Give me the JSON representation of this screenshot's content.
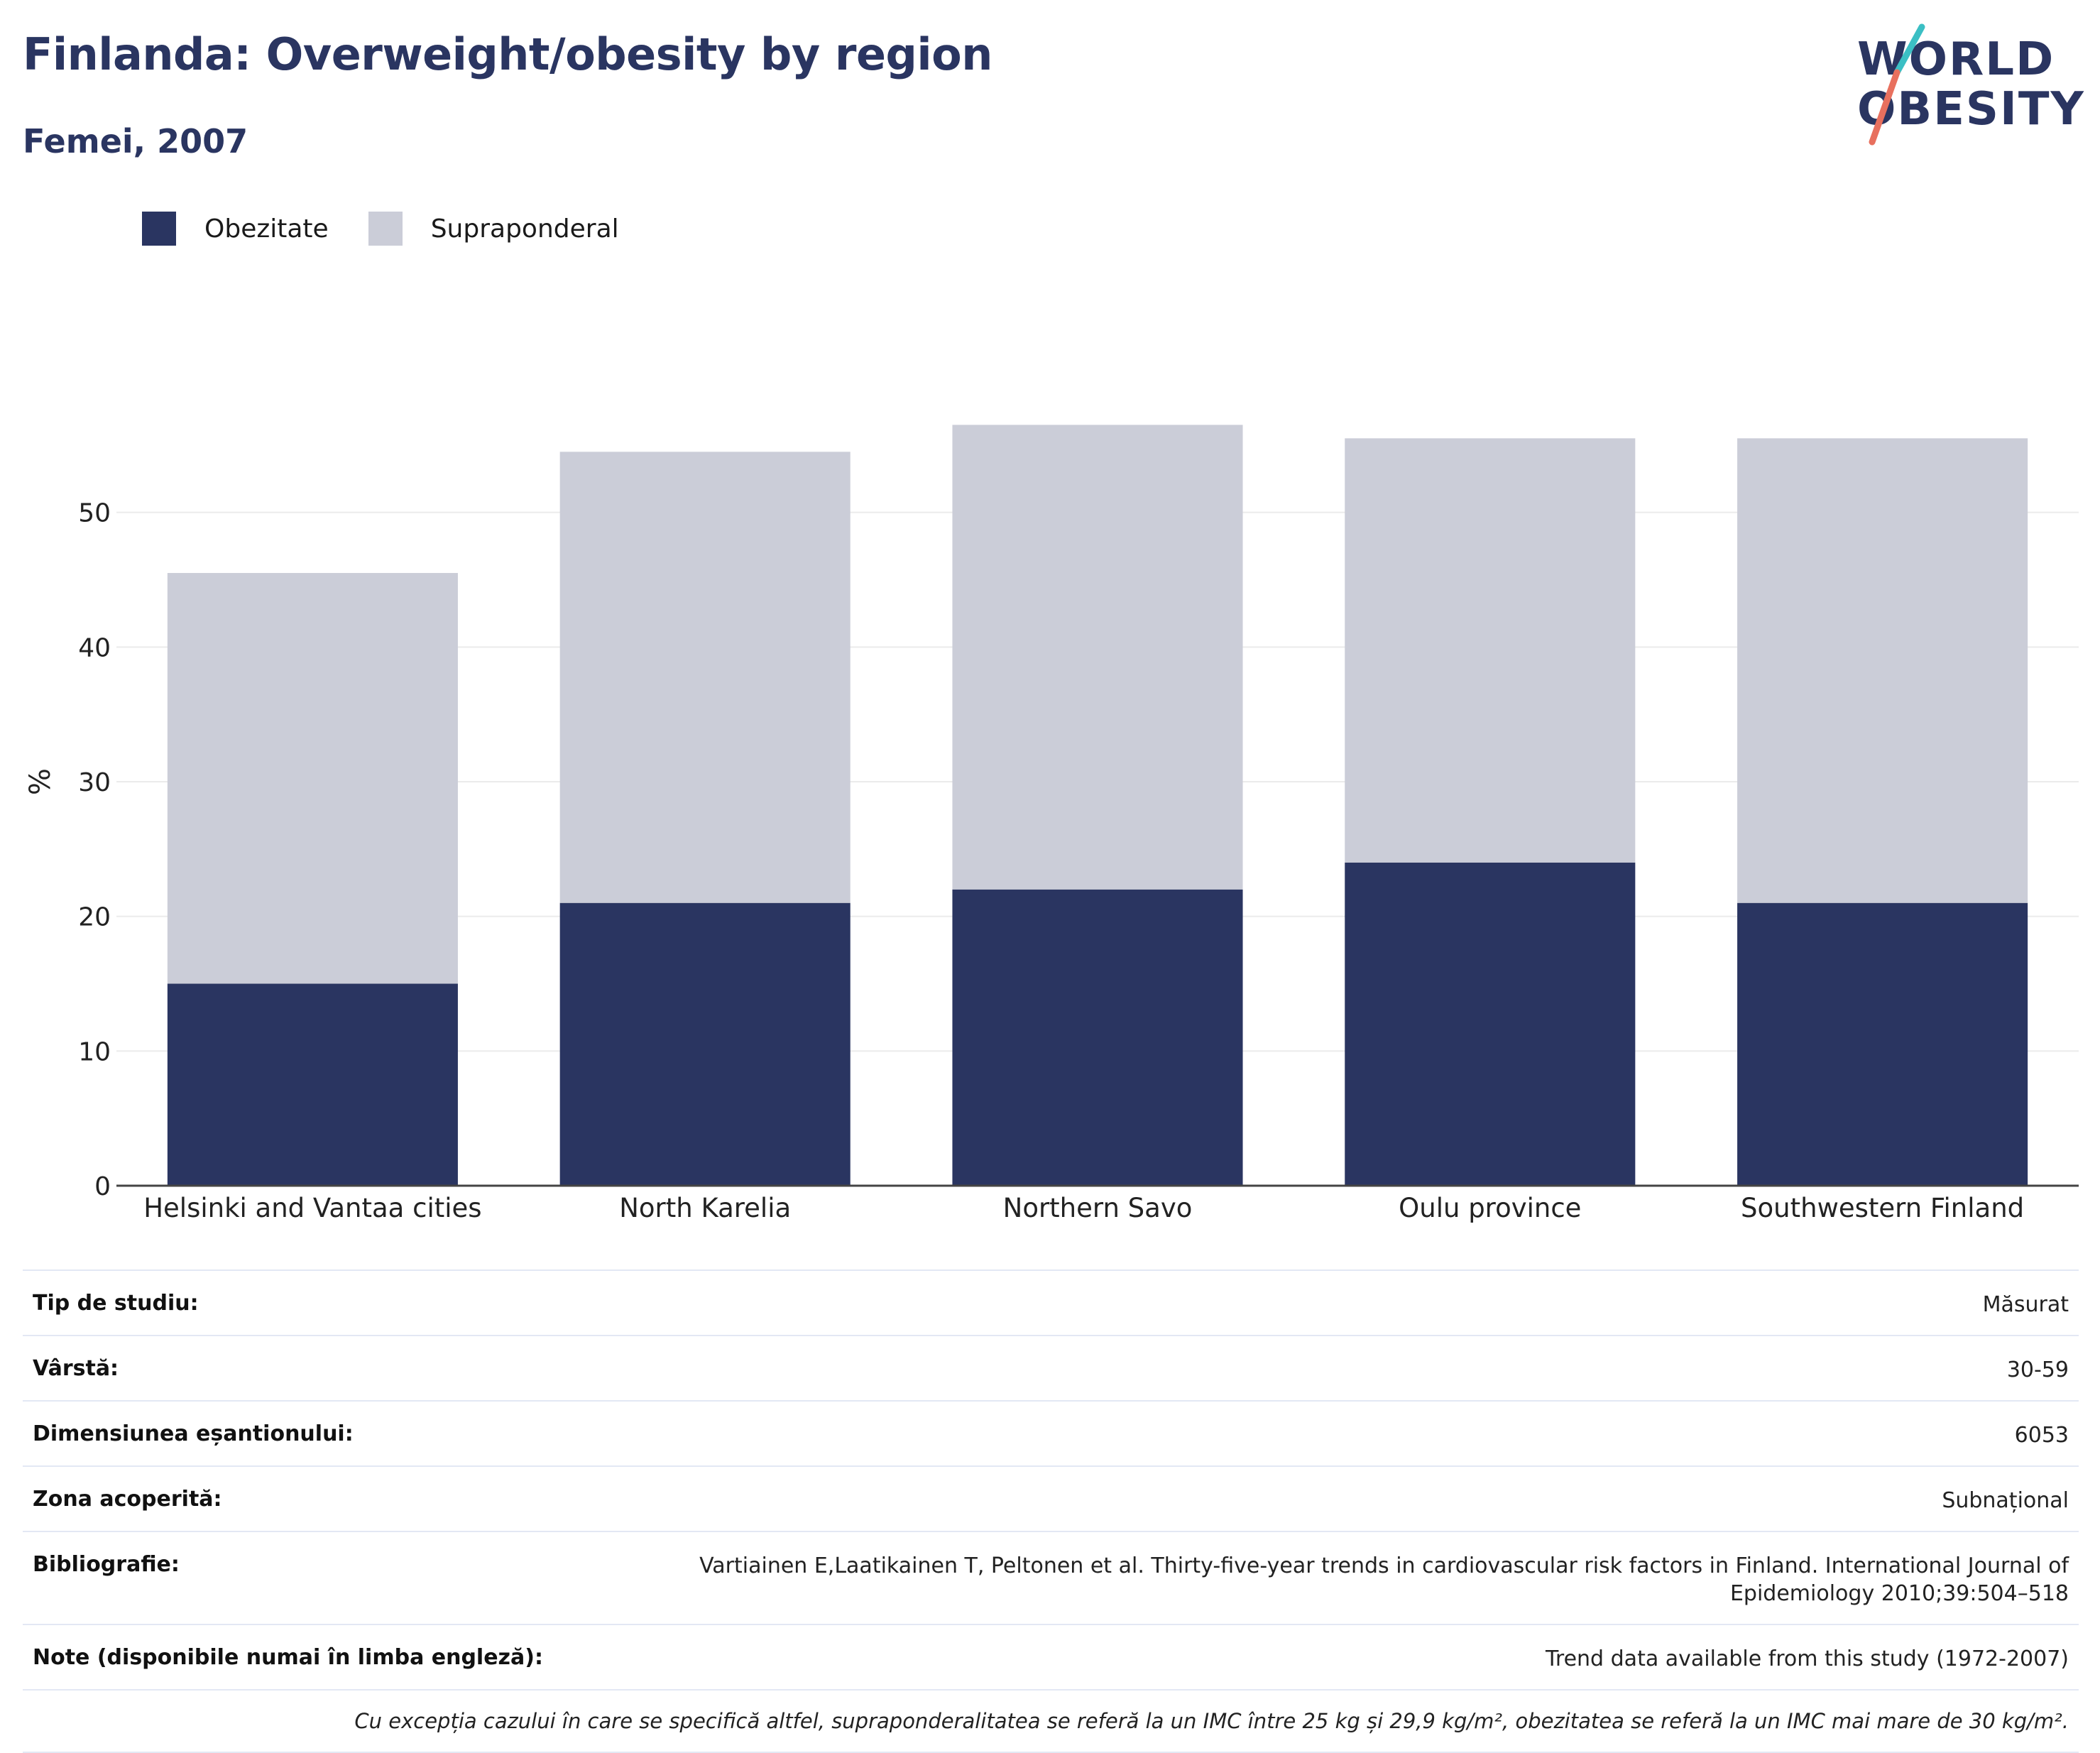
{
  "header": {
    "title": "Finlanda: Overweight/obesity by region",
    "subtitle": "Femei, 2007"
  },
  "logo": {
    "line1": "WORLD",
    "line2": "OBESITY",
    "colors": {
      "text": "#2a3561",
      "slash_top": "#3bbfc4",
      "slash_bottom": "#e8705e"
    }
  },
  "colors": {
    "obesity": "#2a3561",
    "overweight": "#cbcdd8",
    "grid": "#ebebeb",
    "axis": "#444444"
  },
  "chart_data": {
    "type": "bar",
    "stacked": true,
    "categories": [
      "Helsinki and Vantaa cities",
      "North Karelia",
      "Northern Savo",
      "Oulu province",
      "Southwestern Finland"
    ],
    "series": [
      {
        "name": "Obezitate",
        "color": "#2a3561",
        "values": [
          15,
          21,
          22,
          24,
          21
        ]
      },
      {
        "name": "Supraponderal",
        "color": "#cbcdd8",
        "values": [
          30.5,
          33.5,
          34.5,
          31.5,
          34.5
        ]
      }
    ],
    "totals": [
      45.5,
      54.5,
      56.5,
      55.5,
      55.5
    ],
    "ylabel": "%",
    "xlabel": "",
    "ylim": [
      0,
      60
    ],
    "yticks": [
      0,
      10,
      20,
      30,
      40,
      50
    ],
    "grid": true,
    "legend_position": "top-left"
  },
  "details": {
    "rows": [
      {
        "key": "Tip de studiu:",
        "value": "Măsurat"
      },
      {
        "key": "Vârstă:",
        "value": "30-59"
      },
      {
        "key": "Dimensiunea eșantionului:",
        "value": "6053"
      },
      {
        "key": "Zona acoperită:",
        "value": "Subnațional"
      },
      {
        "key": "Bibliografie:",
        "value": "Vartiainen E,Laatikainen T, Peltonen et al. Thirty-five-year trends in cardiovascular risk factors in Finland. International Journal of Epidemiology 2010;39:504–518"
      },
      {
        "key": "Note (disponibile numai în limba engleză):",
        "value": "Trend data available from this study (1972-2007)"
      }
    ],
    "footnote": "Cu excepția cazului în care se specifică altfel, supraponderalitatea se referă la un IMC între 25 kg și 29,9 kg/m², obezitatea se referă la un IMC mai mare de 30 kg/m²."
  }
}
